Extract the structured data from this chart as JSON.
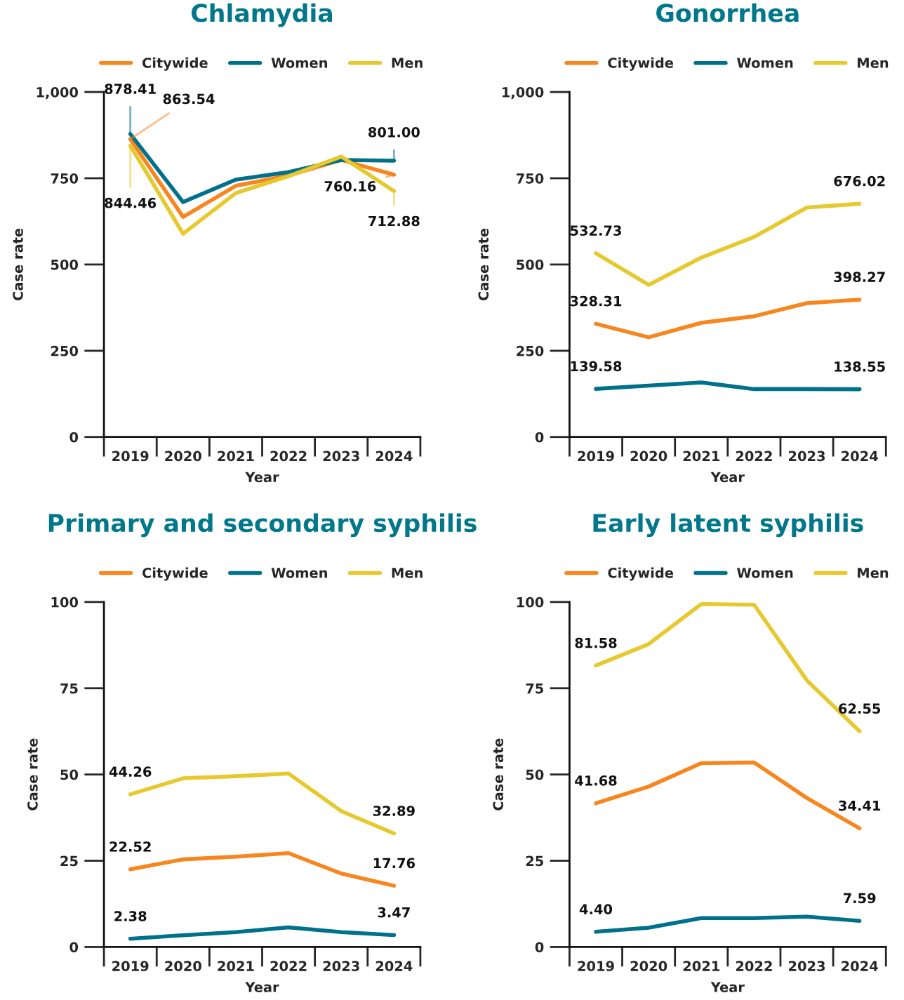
{
  "chart_data": [
    {
      "type": "line",
      "title": "Chlamydia",
      "xlabel": "Year",
      "ylabel": "Case rate",
      "categories": [
        "2019",
        "2020",
        "2021",
        "2022",
        "2023",
        "2024"
      ],
      "ylim": [
        0,
        1000
      ],
      "yticks": [
        0,
        250,
        500,
        750,
        {
          "value": 1000,
          "label": "1,000"
        }
      ],
      "legend": "top",
      "grid": false,
      "line_style": "solid",
      "series": [
        {
          "name": "Citywide",
          "color": "#f7861e",
          "values": [
            863.54,
            638,
            728,
            758,
            803,
            760.16
          ],
          "value_labels": [
            "863.54",
            null,
            null,
            null,
            null,
            "760.16"
          ]
        },
        {
          "name": "Women",
          "color": "#00718a",
          "values": [
            878.41,
            681,
            746,
            768,
            803,
            801.0
          ],
          "value_labels": [
            "878.41",
            null,
            null,
            null,
            null,
            "801.00"
          ]
        },
        {
          "name": "Men",
          "color": "#e5c92f",
          "values": [
            844.46,
            589,
            707,
            756,
            813,
            712.88
          ],
          "value_labels": [
            "844.46",
            null,
            null,
            null,
            null,
            "712.88"
          ]
        }
      ]
    },
    {
      "type": "line",
      "title": "Gonorrhea",
      "xlabel": "Year",
      "ylabel": "Case rate",
      "categories": [
        "2019",
        "2020",
        "2021",
        "2022",
        "2023",
        "2024"
      ],
      "ylim": [
        0,
        1000
      ],
      "yticks": [
        0,
        250,
        500,
        750,
        {
          "value": 1000,
          "label": "1,000"
        }
      ],
      "legend": "top",
      "grid": false,
      "line_style": "solid",
      "series": [
        {
          "name": "Citywide",
          "color": "#f7861e",
          "values": [
            328.31,
            289,
            331,
            350,
            388,
            398.27
          ],
          "value_labels": [
            "328.31",
            null,
            null,
            null,
            null,
            "398.27"
          ]
        },
        {
          "name": "Women",
          "color": "#00718a",
          "values": [
            139.58,
            149,
            158,
            139,
            139,
            138.55
          ],
          "value_labels": [
            "139.58",
            null,
            null,
            null,
            null,
            "138.55"
          ]
        },
        {
          "name": "Men",
          "color": "#e5c92f",
          "values": [
            532.73,
            441,
            520,
            580,
            665,
            676.02
          ],
          "value_labels": [
            "532.73",
            null,
            null,
            null,
            null,
            "676.02"
          ]
        }
      ]
    },
    {
      "type": "line",
      "title": "Primary and secondary syphilis",
      "xlabel": "Year",
      "ylabel": "Case rate",
      "categories": [
        "2019",
        "2020",
        "2021",
        "2022",
        "2023",
        "2024"
      ],
      "ylim": [
        0,
        100
      ],
      "yticks": [
        0,
        25,
        50,
        75,
        100
      ],
      "legend": "top",
      "grid": false,
      "line_style": "solid",
      "series": [
        {
          "name": "Citywide",
          "color": "#f7861e",
          "values": [
            22.52,
            25.4,
            26.2,
            27.2,
            21.3,
            17.76
          ],
          "value_labels": [
            "22.52",
            null,
            null,
            null,
            null,
            "17.76"
          ]
        },
        {
          "name": "Women",
          "color": "#00718a",
          "values": [
            2.38,
            3.4,
            4.3,
            5.7,
            4.3,
            3.47
          ],
          "value_labels": [
            "2.38",
            null,
            null,
            null,
            null,
            "3.47"
          ]
        },
        {
          "name": "Men",
          "color": "#e5c92f",
          "values": [
            44.26,
            48.9,
            49.5,
            50.3,
            39.4,
            32.89
          ],
          "value_labels": [
            "44.26",
            null,
            null,
            null,
            null,
            "32.89"
          ]
        }
      ]
    },
    {
      "type": "line",
      "title": "Early latent syphilis",
      "xlabel": "Year",
      "ylabel": "Case rate",
      "categories": [
        "2019",
        "2020",
        "2021",
        "2022",
        "2023",
        "2024"
      ],
      "ylim": [
        0,
        100
      ],
      "yticks": [
        0,
        25,
        50,
        75,
        100
      ],
      "legend": "top",
      "grid": false,
      "line_style": "solid",
      "series": [
        {
          "name": "Citywide",
          "color": "#f7861e",
          "values": [
            41.68,
            46.5,
            53.3,
            53.5,
            43.2,
            34.41
          ],
          "value_labels": [
            "41.68",
            null,
            null,
            null,
            null,
            "34.41"
          ]
        },
        {
          "name": "Women",
          "color": "#00718a",
          "values": [
            4.4,
            5.6,
            8.4,
            8.4,
            8.8,
            7.59
          ],
          "value_labels": [
            "4.40",
            null,
            null,
            null,
            null,
            "7.59"
          ]
        },
        {
          "name": "Men",
          "color": "#e5c92f",
          "values": [
            81.58,
            87.8,
            99.4,
            99.2,
            77.3,
            62.55
          ],
          "value_labels": [
            "81.58",
            null,
            null,
            null,
            null,
            "62.55"
          ]
        }
      ]
    }
  ]
}
